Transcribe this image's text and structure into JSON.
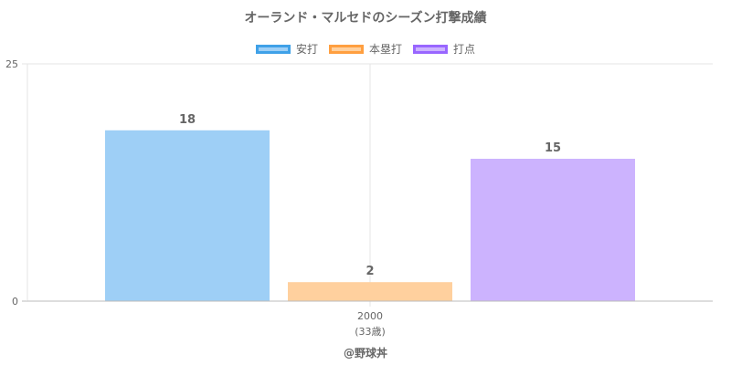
{
  "title": "オーランド・マルセドのシーズン打撃成績",
  "credit": "@野球丼",
  "chart_data": {
    "type": "bar",
    "categories": [
      "2000"
    ],
    "category_sublabels": [
      "(33歳)"
    ],
    "series": [
      {
        "name": "安打",
        "values": [
          18
        ],
        "color": "#9ecff6",
        "border": "#3fa1e8"
      },
      {
        "name": "本塁打",
        "values": [
          2
        ],
        "color": "#ffd09e",
        "border": "#ff9f40"
      },
      {
        "name": "打点",
        "values": [
          15
        ],
        "color": "#ccb3fe",
        "border": "#9966ff"
      }
    ],
    "ylim": [
      0,
      25
    ],
    "yticks": [
      0,
      25
    ],
    "grid": true,
    "legend": "top-center"
  }
}
